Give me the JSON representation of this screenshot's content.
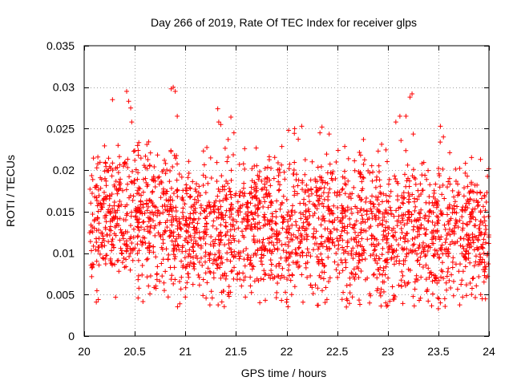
{
  "chart_data": {
    "type": "scatter",
    "title": "Day 266 of 2019, Rate Of TEC Index for receiver glps",
    "xlabel": "GPS time / hours",
    "ylabel": "ROTI / TECUs",
    "xlim": [
      20,
      24
    ],
    "ylim": [
      0,
      0.035
    ],
    "xticks": [
      20,
      20.5,
      21,
      21.5,
      22,
      22.5,
      23,
      23.5,
      24
    ],
    "xtick_labels": [
      "20",
      "20.5",
      "21",
      "21.5",
      "22",
      "22.5",
      "23",
      "23.5",
      "24"
    ],
    "yticks": [
      0,
      0.005,
      0.01,
      0.015,
      0.02,
      0.025,
      0.03,
      0.035
    ],
    "ytick_labels": [
      "0",
      "0.005",
      "0.01",
      "0.015",
      "0.02",
      "0.025",
      "0.03",
      "0.035"
    ],
    "grid": true,
    "marker": "plus",
    "color": "#ff0000",
    "series": [
      {
        "name": "ROTI",
        "band_profile": [
          [
            20.0,
            0.0145,
            0.004
          ],
          [
            20.25,
            0.0145,
            0.004
          ],
          [
            20.5,
            0.014,
            0.0045
          ],
          [
            20.75,
            0.0135,
            0.0045
          ],
          [
            21.0,
            0.0135,
            0.004
          ],
          [
            21.25,
            0.013,
            0.0045
          ],
          [
            21.5,
            0.013,
            0.0045
          ],
          [
            21.75,
            0.0135,
            0.0045
          ],
          [
            22.0,
            0.013,
            0.0045
          ],
          [
            22.25,
            0.0135,
            0.0045
          ],
          [
            22.5,
            0.013,
            0.0045
          ],
          [
            22.75,
            0.0135,
            0.0045
          ],
          [
            23.0,
            0.013,
            0.0045
          ],
          [
            23.25,
            0.013,
            0.0045
          ],
          [
            23.5,
            0.0125,
            0.0045
          ],
          [
            23.75,
            0.0125,
            0.0045
          ],
          [
            24.0,
            0.012,
            0.004
          ]
        ],
        "sample_count": 2400,
        "highlight_points": [
          [
            20.28,
            0.0285
          ],
          [
            20.42,
            0.0295
          ],
          [
            20.44,
            0.0283
          ],
          [
            20.46,
            0.0275
          ],
          [
            20.47,
            0.0258
          ],
          [
            20.62,
            0.0231
          ],
          [
            20.86,
            0.0298
          ],
          [
            20.88,
            0.03
          ],
          [
            20.9,
            0.0295
          ],
          [
            20.92,
            0.0265
          ],
          [
            21.32,
            0.0274
          ],
          [
            21.33,
            0.0258
          ],
          [
            21.35,
            0.0255
          ],
          [
            21.45,
            0.0264
          ],
          [
            21.48,
            0.0245
          ],
          [
            22.02,
            0.0248
          ],
          [
            22.08,
            0.025
          ],
          [
            22.15,
            0.0253
          ],
          [
            22.35,
            0.0252
          ],
          [
            22.33,
            0.0245
          ],
          [
            22.76,
            0.0237
          ],
          [
            23.08,
            0.0258
          ],
          [
            23.12,
            0.0265
          ],
          [
            23.18,
            0.0265
          ],
          [
            23.22,
            0.0288
          ],
          [
            23.24,
            0.0292
          ],
          [
            23.52,
            0.0253
          ],
          [
            23.55,
            0.024
          ],
          [
            20.12,
            0.0041
          ],
          [
            20.14,
            0.0044
          ],
          [
            20.65,
            0.0051
          ],
          [
            21.0,
            0.0047
          ],
          [
            21.95,
            0.0043
          ],
          [
            22.0,
            0.0041
          ],
          [
            22.6,
            0.0043
          ],
          [
            22.98,
            0.004
          ],
          [
            23.0,
            0.0037
          ],
          [
            23.02,
            0.0042
          ],
          [
            23.5,
            0.0033
          ],
          [
            23.52,
            0.004
          ],
          [
            23.74,
            0.0047
          ]
        ]
      }
    ]
  }
}
